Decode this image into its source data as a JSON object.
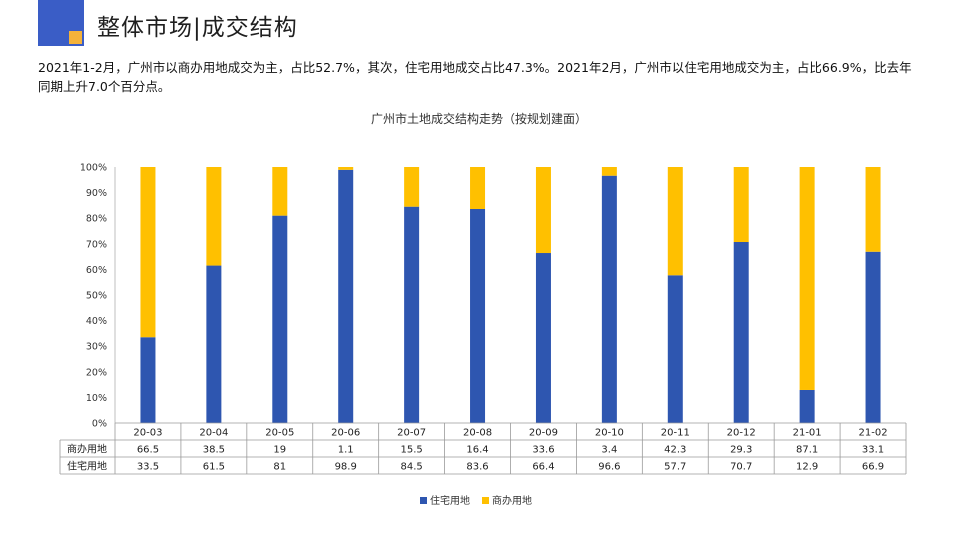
{
  "header": {
    "title": "整体市场|成交结构"
  },
  "description": "2021年1-2月，广州市以商办用地成交为主，占比52.7%，其次，住宅用地成交占比47.3%。2021年2月，广州市以住宅用地成交为主，占比66.9%，比去年同期上升7.0个百分点。",
  "colors": {
    "residential": "#2e56b0",
    "commercial": "#ffc000",
    "logo_blue": "#3a5dc6",
    "logo_orange": "#f4b23a"
  },
  "chart_data": {
    "type": "bar",
    "stacked": true,
    "title": "广州市土地成交结构走势（按规划建面）",
    "categories": [
      "20-03",
      "20-04",
      "20-05",
      "20-06",
      "20-07",
      "20-08",
      "20-09",
      "20-10",
      "20-11",
      "20-12",
      "21-01",
      "21-02"
    ],
    "series": [
      {
        "name": "住宅用地",
        "values": [
          33.5,
          61.5,
          81,
          98.9,
          84.5,
          83.6,
          66.4,
          96.6,
          57.7,
          70.7,
          12.9,
          66.9
        ],
        "labels": [
          "33.5",
          "61.5",
          "81",
          "98.9",
          "84.5",
          "83.6",
          "66.4",
          "96.6",
          "57.7",
          "70.7",
          "12.9",
          "66.9"
        ]
      },
      {
        "name": "商办用地",
        "values": [
          66.5,
          38.5,
          19,
          1.1,
          15.5,
          16.4,
          33.6,
          3.4,
          42.3,
          29.3,
          87.1,
          33.1
        ],
        "labels": [
          "66.5",
          "38.5",
          "19",
          "1.1",
          "15.5",
          "16.4",
          "33.6",
          "3.4",
          "42.3",
          "29.3",
          "87.1",
          "33.1"
        ]
      }
    ],
    "yticks": [
      "0%",
      "10%",
      "20%",
      "30%",
      "40%",
      "50%",
      "60%",
      "70%",
      "80%",
      "90%",
      "100%"
    ],
    "ylim": [
      0,
      100
    ],
    "legend_position": "bottom",
    "data_table": true
  }
}
